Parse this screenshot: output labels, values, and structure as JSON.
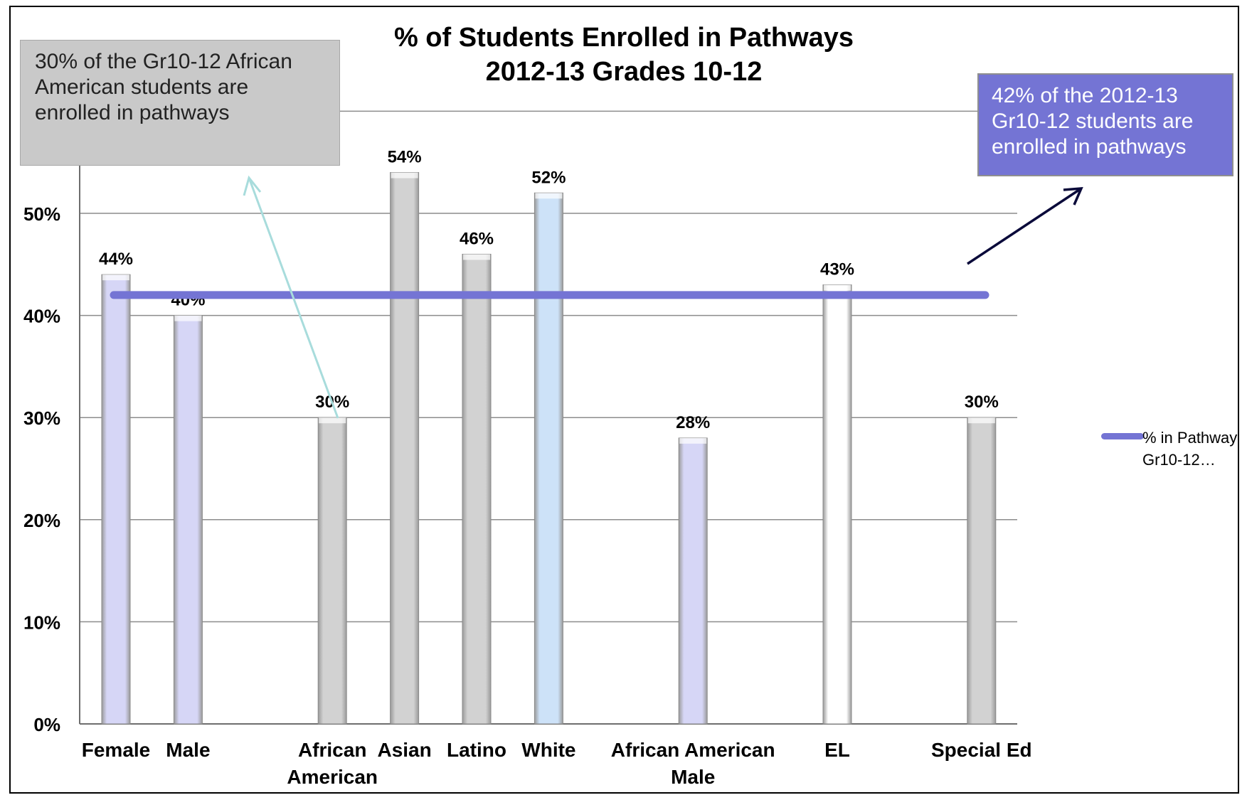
{
  "chart_data": {
    "type": "bar",
    "title_line1": "% of Students Enrolled in Pathways",
    "title_line2": "2012-13 Grades 10-12",
    "categories": [
      {
        "label": [
          "Female"
        ],
        "value": 44,
        "color": "#d6d6f6"
      },
      {
        "label": [
          "Male"
        ],
        "value": 40,
        "color": "#d6d6f6"
      },
      {
        "label": [
          "African",
          "American"
        ],
        "value": 30,
        "color": "#d2d2d2"
      },
      {
        "label": [
          "Asian"
        ],
        "value": 54,
        "color": "#d2d2d2"
      },
      {
        "label": [
          "Latino"
        ],
        "value": 46,
        "color": "#d2d2d2"
      },
      {
        "label": [
          "White"
        ],
        "value": 52,
        "color": "#cde2f8"
      },
      {
        "label": [
          "African American",
          "Male"
        ],
        "value": 28,
        "color": "#d6d6f6"
      },
      {
        "label": [
          "EL"
        ],
        "value": 43,
        "color": "#ffffff"
      },
      {
        "label": [
          "Special Ed"
        ],
        "value": 30,
        "color": "#d2d2d2"
      }
    ],
    "category_slots": [
      0,
      1,
      3,
      4,
      5,
      6,
      8,
      10,
      12
    ],
    "data_labels": [
      "44%",
      "40%",
      "30%",
      "54%",
      "46%",
      "52%",
      "28%",
      "43%",
      "30%"
    ],
    "reference_line": {
      "name": "% in Pathway Gr10-12...",
      "value": 42,
      "color": "#7474d4"
    },
    "yticks": [
      0,
      10,
      20,
      30,
      40,
      50
    ],
    "ytick_labels": [
      "0%",
      "10%",
      "20%",
      "30%",
      "40%",
      "50%"
    ],
    "ylim": [
      0,
      60
    ],
    "grid": true,
    "legend_position": "right"
  },
  "callouts": {
    "left_text": "30% of the Gr10-12 African American students are enrolled in pathways",
    "right_text": "42% of the 2012-13 Gr10-12 students are enrolled in pathways"
  },
  "legend": {
    "label": "% in Pathway Gr10-12…",
    "color": "#7474d4"
  }
}
